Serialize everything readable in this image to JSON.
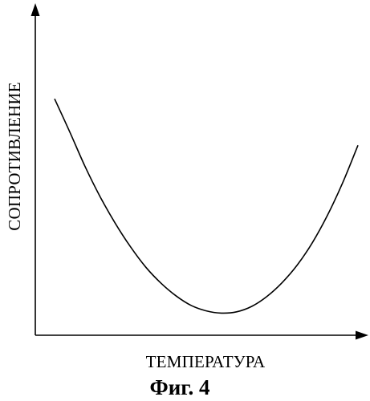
{
  "chart_data": {
    "type": "line",
    "ylabel": "СОПРОТИВЛЕНИЕ",
    "xlabel": "ТЕМПЕРАТУРА",
    "caption": "Фиг. 4",
    "x": [
      0,
      0.05,
      0.1,
      0.15,
      0.2,
      0.25,
      0.3,
      0.35,
      0.4,
      0.45,
      0.5,
      0.55,
      0.6,
      0.65,
      0.7,
      0.75,
      0.8,
      0.85,
      0.9,
      0.95,
      1
    ],
    "series": [
      {
        "values": [
          0.737,
          0.634,
          0.527,
          0.432,
          0.349,
          0.276,
          0.213,
          0.163,
          0.123,
          0.093,
          0.076,
          0.069,
          0.073,
          0.09,
          0.121,
          0.164,
          0.219,
          0.289,
          0.375,
          0.476,
          0.592
        ]
      }
    ],
    "xlim": [
      0,
      1
    ],
    "ylim": [
      0,
      1
    ],
    "grid": false,
    "axis_color": "#000000",
    "line_color": "#000000"
  }
}
